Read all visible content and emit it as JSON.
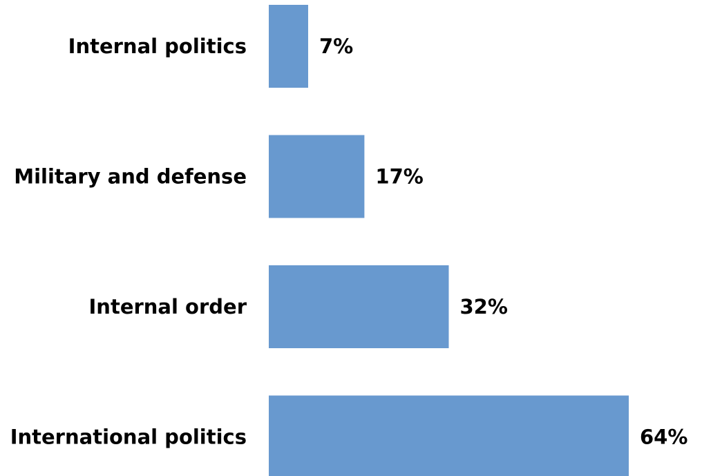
{
  "chart_data": {
    "type": "bar",
    "orientation": "horizontal",
    "categories": [
      "Internal politics",
      "Military and defense",
      "Internal order",
      "International politics"
    ],
    "values": [
      7,
      17,
      32,
      64
    ],
    "value_labels": [
      "7%",
      "17%",
      "32%",
      "64%"
    ],
    "unit": "%",
    "xlim": [
      0,
      70
    ],
    "grid": false,
    "legend": "none",
    "bar_color": "#6899CF"
  }
}
